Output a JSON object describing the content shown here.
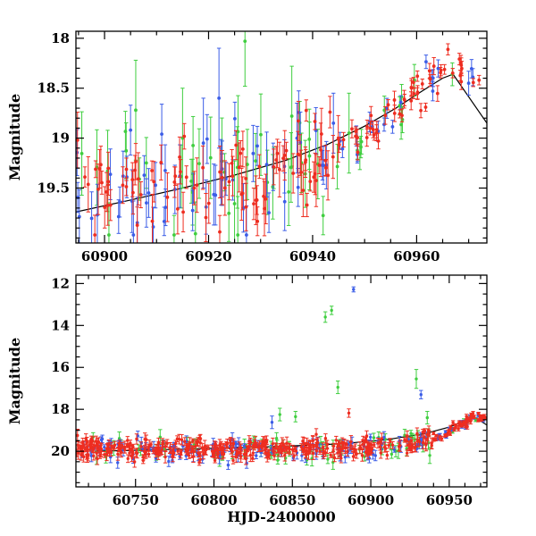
{
  "background": "#ffffff",
  "axis_color": "#000000",
  "chart_data": [
    {
      "type": "scatter",
      "panel": "top",
      "title": "",
      "xlabel": "",
      "ylabel": "Magnitude",
      "y_axis_inverted": true,
      "xlim": [
        60894.5,
        60973.5
      ],
      "ylim": [
        20.05,
        17.93
      ],
      "xticks": [
        60900,
        60920,
        60940,
        60960
      ],
      "xminor": 5,
      "yticks": [
        18,
        18.5,
        19,
        19.5
      ],
      "yminor": 0.1,
      "clamp": [
        19.97,
        17.96
      ],
      "trend": {
        "points": [
          [
            60894,
            19.5
          ],
          [
            60915,
            19.45
          ],
          [
            60935,
            19.35
          ],
          [
            60945,
            19.15
          ],
          [
            60952,
            18.9
          ],
          [
            60958,
            18.65
          ],
          [
            60963,
            18.42
          ],
          [
            60967,
            18.3
          ],
          [
            60970,
            18.35
          ],
          [
            60973,
            18.45
          ]
        ]
      },
      "model_line": {
        "color": "#000000",
        "points": [
          [
            60894.5,
            19.74
          ],
          [
            60905,
            19.62
          ],
          [
            60915,
            19.5
          ],
          [
            60925,
            19.37
          ],
          [
            60935,
            19.22
          ],
          [
            60943,
            19.06
          ],
          [
            60950,
            18.88
          ],
          [
            60956,
            18.7
          ],
          [
            60961,
            18.53
          ],
          [
            60965,
            18.4
          ],
          [
            60967,
            18.36
          ],
          [
            60973.5,
            18.85
          ]
        ]
      },
      "series": [
        {
          "name": "green",
          "color": "#3fce3f",
          "seed": 11,
          "count": 50,
          "xrange": [
            60895,
            60968
          ],
          "segments": [
            {
              "xmax": 60945,
              "sigma": 0.3,
              "err": [
                0.18,
                0.45
              ]
            },
            {
              "xmax": 61000,
              "sigma": 0.13,
              "err": [
                0.08,
                0.16
              ]
            }
          ],
          "extra_points": [
            {
              "x": 60906,
              "y": 18.72,
              "err": 0.5
            },
            {
              "x": 60915,
              "y": 19.0,
              "err": 0.5
            },
            {
              "x": 60927,
              "y": 18.03,
              "err": 0.45
            },
            {
              "x": 60936,
              "y": 18.78,
              "err": 0.5
            },
            {
              "x": 60947,
              "y": 18.95,
              "err": 0.4
            }
          ]
        },
        {
          "name": "blue",
          "color": "#3b5de7",
          "seed": 22,
          "count": 70,
          "xrange": [
            60894.5,
            60971
          ],
          "segments": [
            {
              "xmax": 60945,
              "sigma": 0.27,
              "err": [
                0.14,
                0.35
              ]
            },
            {
              "xmax": 61000,
              "sigma": 0.12,
              "err": [
                0.06,
                0.12
              ]
            }
          ],
          "extra_points": [
            {
              "x": 60905,
              "y": 18.92,
              "err": 0.25
            },
            {
              "x": 60911,
              "y": 18.96,
              "err": 0.3
            },
            {
              "x": 60919,
              "y": 19.05,
              "err": 0.45
            },
            {
              "x": 60922,
              "y": 18.6,
              "err": 0.5
            },
            {
              "x": 60937,
              "y": 19.0,
              "err": 0.35
            },
            {
              "x": 60944,
              "y": 18.85,
              "err": 0.3
            },
            {
              "x": 60970,
              "y": 18.45,
              "err": 0.12
            }
          ]
        },
        {
          "name": "red",
          "color": "#ee2d20",
          "seed": 33,
          "count": 150,
          "xrange": [
            60894.5,
            60972
          ],
          "segments": [
            {
              "xmax": 60945,
              "sigma": 0.23,
              "err": [
                0.08,
                0.28
              ]
            },
            {
              "xmax": 61000,
              "sigma": 0.09,
              "err": [
                0.04,
                0.09
              ]
            }
          ],
          "extra_points": [
            {
              "x": 60894.8,
              "y": 19.02,
              "err": 0.28
            }
          ]
        }
      ]
    },
    {
      "type": "scatter",
      "panel": "bottom",
      "title": "",
      "xlabel": "HJD-2400000",
      "ylabel": "Magnitude",
      "y_axis_inverted": true,
      "xlim": [
        60712,
        60974
      ],
      "ylim": [
        21.7,
        11.6
      ],
      "xticks": [
        60750,
        60800,
        60850,
        60900,
        60950
      ],
      "xminor": 10,
      "yticks": [
        12,
        14,
        16,
        18,
        20
      ],
      "yminor": 0.5,
      "clamp": [
        21.35,
        11.9
      ],
      "trend": {
        "points": [
          [
            60712,
            19.9
          ],
          [
            60850,
            19.9
          ],
          [
            60900,
            19.8
          ],
          [
            60930,
            19.65
          ],
          [
            60945,
            19.3
          ],
          [
            60955,
            18.85
          ],
          [
            60962,
            18.5
          ],
          [
            60968,
            18.32
          ],
          [
            60974,
            18.42
          ]
        ]
      },
      "model_line": {
        "color": "#000000",
        "points": [
          [
            60724,
            20.0
          ],
          [
            60780,
            19.9
          ],
          [
            60840,
            19.78
          ],
          [
            60880,
            19.65
          ],
          [
            60910,
            19.45
          ],
          [
            60935,
            19.15
          ],
          [
            60950,
            18.85
          ],
          [
            60960,
            18.55
          ],
          [
            60966,
            18.37
          ],
          [
            60974,
            18.75
          ]
        ]
      },
      "series": [
        {
          "name": "green",
          "color": "#3fce3f",
          "seed": 44,
          "count": 80,
          "xrange": [
            60715,
            60968
          ],
          "segments": [
            {
              "xmax": 60940,
              "sigma": 0.3,
              "err": [
                0.15,
                0.4
              ]
            },
            {
              "xmax": 61000,
              "sigma": 0.13,
              "err": [
                0.08,
                0.18
              ]
            }
          ],
          "extra_points": [
            {
              "x": 60871,
              "y": 13.6,
              "err": 0.25
            },
            {
              "x": 60875,
              "y": 13.28,
              "err": 0.2
            },
            {
              "x": 60879,
              "y": 16.95,
              "err": 0.3
            },
            {
              "x": 60852,
              "y": 18.35,
              "err": 0.25
            },
            {
              "x": 60842,
              "y": 18.25,
              "err": 0.3
            },
            {
              "x": 60929,
              "y": 16.55,
              "err": 0.45
            },
            {
              "x": 60936,
              "y": 18.4,
              "err": 0.3
            }
          ]
        },
        {
          "name": "blue",
          "color": "#3b5de7",
          "seed": 55,
          "count": 150,
          "xrange": [
            60712,
            60972
          ],
          "segments": [
            {
              "xmax": 60940,
              "sigma": 0.28,
              "err": [
                0.1,
                0.3
              ]
            },
            {
              "xmax": 61000,
              "sigma": 0.13,
              "err": [
                0.05,
                0.12
              ]
            }
          ],
          "extra_points": [
            {
              "x": 60889,
              "y": 12.28,
              "err": 0.12
            },
            {
              "x": 60932,
              "y": 17.3,
              "err": 0.2
            },
            {
              "x": 60837,
              "y": 18.62,
              "err": 0.3
            }
          ]
        },
        {
          "name": "red",
          "color": "#ee2d20",
          "seed": 66,
          "count": 430,
          "xrange": [
            60710,
            60974
          ],
          "segments": [
            {
              "xmax": 60940,
              "sigma": 0.24,
              "err": [
                0.1,
                0.3
              ]
            },
            {
              "xmax": 61000,
              "sigma": 0.11,
              "err": [
                0.05,
                0.12
              ]
            }
          ],
          "extra_points": [
            {
              "x": 60711,
              "y": 18.92,
              "err": 0.25
            },
            {
              "x": 60713,
              "y": 19.25,
              "err": 0.3
            },
            {
              "x": 60886,
              "y": 18.18,
              "err": 0.2
            }
          ]
        }
      ]
    }
  ]
}
